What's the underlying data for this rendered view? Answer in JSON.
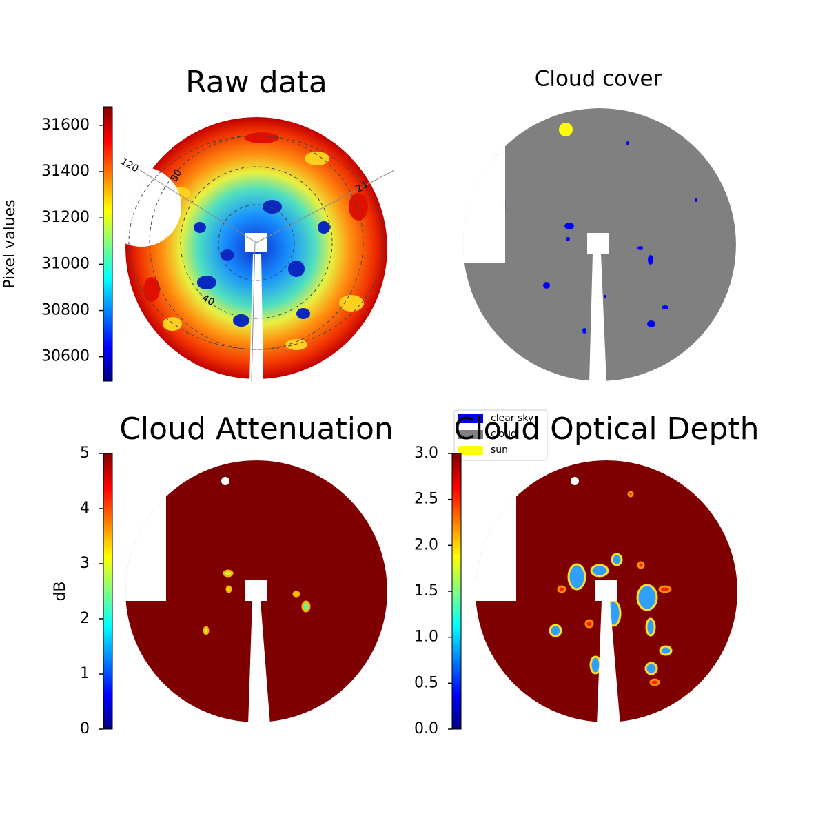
{
  "chart_data": [
    {
      "type": "image",
      "title": "Raw data",
      "colorbar": {
        "label": "Pixel values",
        "clim": [
          30495,
          31680
        ],
        "ticks": [
          30600,
          30800,
          31000,
          31200,
          31400,
          31600
        ],
        "colormap": "jet"
      },
      "annotations": [
        "120",
        "80",
        "24",
        "40"
      ]
    },
    {
      "type": "image",
      "title": "Cloud cover",
      "legend": {
        "entries": [
          {
            "name": "clear sky",
            "color": "#0000ff"
          },
          {
            "name": "cloud",
            "color": "#808080"
          },
          {
            "name": "sun",
            "color": "#ffff00"
          }
        ]
      }
    },
    {
      "type": "image",
      "title": "Cloud Attenuation",
      "colorbar": {
        "label": "dB",
        "clim": [
          0,
          5
        ],
        "ticks": [
          0,
          1,
          2,
          3,
          4,
          5
        ],
        "colormap": "jet"
      }
    },
    {
      "type": "image",
      "title": "Cloud Optical Depth",
      "colorbar": {
        "clim": [
          0,
          3
        ],
        "ticks": [
          {
            "value": 0,
            "label": "0.0"
          },
          0.5,
          {
            "value": 1,
            "label": "1.0"
          },
          1.5,
          {
            "value": 2,
            "label": "2.0"
          },
          2.5,
          {
            "value": 3,
            "label": "3.0"
          }
        ],
        "colormap": "jet"
      }
    }
  ]
}
